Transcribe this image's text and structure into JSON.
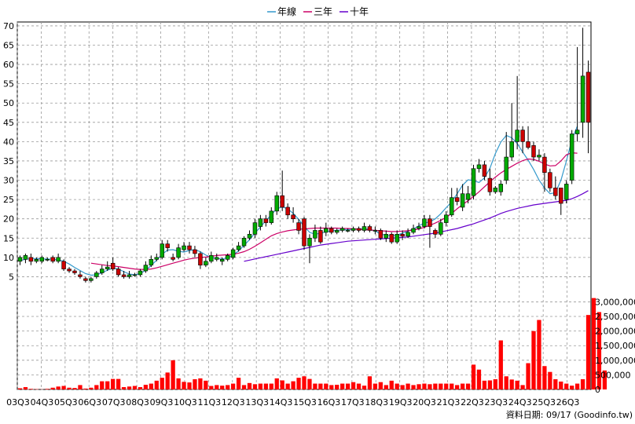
{
  "legend": {
    "year_line": "年線",
    "three_year": "三年",
    "ten_year": "十年"
  },
  "footer": {
    "source": "資料日期: 09/17 (Goodinfo.tw)"
  },
  "colors": {
    "up": "#00aa00",
    "down": "#cc0000",
    "year_line": "#3399cc",
    "three_year": "#cc0066",
    "ten_year": "#6600cc",
    "volume": "#ff0000",
    "grid": "#999999"
  },
  "chart_data": {
    "type": "candlestick",
    "price_axis": {
      "ylim": [
        0,
        71
      ],
      "ticks": [
        5,
        10,
        15,
        20,
        25,
        30,
        35,
        40,
        45,
        50,
        55,
        60,
        65,
        70
      ]
    },
    "volume_axis": {
      "ylim": [
        0,
        3200000
      ],
      "ticks": [
        0,
        500000,
        1000000,
        1500000,
        2000000,
        2500000,
        3000000
      ],
      "tick_labels": [
        "0",
        "500,000",
        "1,000,000",
        "1,500,000",
        "2,000,000",
        "2,500,000",
        "3,000,000"
      ]
    },
    "x_labels": [
      "03Q3",
      "04Q3",
      "05Q3",
      "06Q3",
      "07Q3",
      "08Q3",
      "09Q3",
      "10Q3",
      "11Q3",
      "12Q3",
      "13Q3",
      "14Q3",
      "15Q3",
      "16Q3",
      "17Q3",
      "18Q3",
      "19Q3",
      "20Q3",
      "21Q3",
      "22Q3",
      "23Q3",
      "24Q3",
      "25Q3",
      "26Q3"
    ],
    "candles": [
      {
        "o": 9,
        "c": 10,
        "h": 10.5,
        "l": 8
      },
      {
        "o": 9.5,
        "c": 10.5,
        "h": 11,
        "l": 8.5
      },
      {
        "o": 10,
        "c": 9,
        "h": 11,
        "l": 8
      },
      {
        "o": 9,
        "c": 9.5,
        "h": 10,
        "l": 8.5
      },
      {
        "o": 9,
        "c": 10,
        "h": 10.5,
        "l": 8.5
      },
      {
        "o": 9.5,
        "c": 9.5,
        "h": 10,
        "l": 9
      },
      {
        "o": 10,
        "c": 9,
        "h": 10.5,
        "l": 8.5
      },
      {
        "o": 9,
        "c": 10,
        "h": 11,
        "l": 8.5
      },
      {
        "o": 9,
        "c": 7,
        "h": 9.5,
        "l": 6.5
      },
      {
        "o": 7,
        "c": 6.5,
        "h": 7.5,
        "l": 6
      },
      {
        "o": 6.5,
        "c": 6,
        "h": 7,
        "l": 5.5
      },
      {
        "o": 5.5,
        "c": 5,
        "h": 6.5,
        "l": 4.5
      },
      {
        "o": 4.5,
        "c": 4,
        "h": 5,
        "l": 3.5
      },
      {
        "o": 4,
        "c": 4.5,
        "h": 5,
        "l": 3.5
      },
      {
        "o": 5,
        "c": 6,
        "h": 6.5,
        "l": 4.5
      },
      {
        "o": 6,
        "c": 7,
        "h": 8,
        "l": 5.5
      },
      {
        "o": 7,
        "c": 7.5,
        "h": 9,
        "l": 6.5
      },
      {
        "o": 8.5,
        "c": 7,
        "h": 10,
        "l": 6.5
      },
      {
        "o": 7,
        "c": 5.5,
        "h": 7.5,
        "l": 5
      },
      {
        "o": 5.5,
        "c": 5,
        "h": 6.5,
        "l": 4.5
      },
      {
        "o": 5,
        "c": 5.5,
        "h": 6.5,
        "l": 4.5
      },
      {
        "o": 5.5,
        "c": 5.5,
        "h": 6,
        "l": 5
      },
      {
        "o": 5.5,
        "c": 6.5,
        "h": 7,
        "l": 5
      },
      {
        "o": 6.5,
        "c": 8,
        "h": 9,
        "l": 6
      },
      {
        "o": 8,
        "c": 9.5,
        "h": 10.5,
        "l": 7.5
      },
      {
        "o": 9.5,
        "c": 10,
        "h": 11,
        "l": 9
      },
      {
        "o": 10,
        "c": 13.5,
        "h": 14.5,
        "l": 9.5
      },
      {
        "o": 13.5,
        "c": 12.5,
        "h": 14.5,
        "l": 11.5
      },
      {
        "o": 10,
        "c": 9.5,
        "h": 11,
        "l": 9
      },
      {
        "o": 10,
        "c": 12.5,
        "h": 13.5,
        "l": 9.5
      },
      {
        "o": 12,
        "c": 13,
        "h": 14,
        "l": 11.5
      },
      {
        "o": 13,
        "c": 12,
        "h": 14,
        "l": 11
      },
      {
        "o": 12,
        "c": 11,
        "h": 13,
        "l": 10
      },
      {
        "o": 11,
        "c": 8,
        "h": 11.5,
        "l": 7
      },
      {
        "o": 8,
        "c": 9,
        "h": 10,
        "l": 7.5
      },
      {
        "o": 9,
        "c": 10.5,
        "h": 11.5,
        "l": 8.5
      },
      {
        "o": 9.5,
        "c": 10,
        "h": 11,
        "l": 9
      },
      {
        "o": 9,
        "c": 9.5,
        "h": 10,
        "l": 8
      },
      {
        "o": 9.5,
        "c": 10.5,
        "h": 11,
        "l": 9
      },
      {
        "o": 10,
        "c": 12,
        "h": 12.5,
        "l": 9.5
      },
      {
        "o": 12,
        "c": 13,
        "h": 14,
        "l": 11.5
      },
      {
        "o": 13,
        "c": 15,
        "h": 15.5,
        "l": 12.5
      },
      {
        "o": 15,
        "c": 16,
        "h": 17,
        "l": 14.5
      },
      {
        "o": 16,
        "c": 19,
        "h": 20,
        "l": 15
      },
      {
        "o": 18,
        "c": 20,
        "h": 21,
        "l": 17
      },
      {
        "o": 20,
        "c": 19,
        "h": 21,
        "l": 18
      },
      {
        "o": 19,
        "c": 22,
        "h": 23,
        "l": 18.5
      },
      {
        "o": 22,
        "c": 26,
        "h": 27,
        "l": 21
      },
      {
        "o": 26,
        "c": 23,
        "h": 32.5,
        "l": 22
      },
      {
        "o": 23,
        "c": 21,
        "h": 24,
        "l": 20
      },
      {
        "o": 21,
        "c": 20,
        "h": 23,
        "l": 19
      },
      {
        "o": 19,
        "c": 17,
        "h": 20,
        "l": 16
      },
      {
        "o": 20,
        "c": 13,
        "h": 20.5,
        "l": 12
      },
      {
        "o": 13,
        "c": 15,
        "h": 16,
        "l": 8.5
      },
      {
        "o": 15,
        "c": 17,
        "h": 18.5,
        "l": 14
      },
      {
        "o": 17,
        "c": 14,
        "h": 18,
        "l": 13.5
      },
      {
        "o": 16.5,
        "c": 17.5,
        "h": 19,
        "l": 15.5
      },
      {
        "o": 17.5,
        "c": 16.5,
        "h": 18,
        "l": 16
      },
      {
        "o": 16.5,
        "c": 17,
        "h": 17.5,
        "l": 16
      },
      {
        "o": 17,
        "c": 17.5,
        "h": 18,
        "l": 16.5
      },
      {
        "o": 17,
        "c": 17,
        "h": 17.5,
        "l": 16.5
      },
      {
        "o": 17,
        "c": 17.5,
        "h": 18,
        "l": 16.5
      },
      {
        "o": 17.5,
        "c": 17,
        "h": 18,
        "l": 16.5
      },
      {
        "o": 17,
        "c": 18,
        "h": 19,
        "l": 16.5
      },
      {
        "o": 18,
        "c": 17,
        "h": 18.5,
        "l": 16.5
      },
      {
        "o": 17,
        "c": 17,
        "h": 18,
        "l": 16
      },
      {
        "o": 17,
        "c": 15,
        "h": 17.5,
        "l": 14.5
      },
      {
        "o": 15,
        "c": 16,
        "h": 17,
        "l": 14
      },
      {
        "o": 16,
        "c": 14,
        "h": 16.5,
        "l": 13.5
      },
      {
        "o": 14,
        "c": 16,
        "h": 17,
        "l": 13.5
      },
      {
        "o": 16,
        "c": 15.5,
        "h": 17,
        "l": 14.5
      },
      {
        "o": 15.5,
        "c": 16.5,
        "h": 17.5,
        "l": 15
      },
      {
        "o": 16.5,
        "c": 17.5,
        "h": 18.5,
        "l": 16
      },
      {
        "o": 17.5,
        "c": 18,
        "h": 19,
        "l": 17
      },
      {
        "o": 18,
        "c": 20,
        "h": 21,
        "l": 17.5
      },
      {
        "o": 20,
        "c": 18,
        "h": 21,
        "l": 12.5
      },
      {
        "o": 17,
        "c": 16,
        "h": 17.5,
        "l": 15
      },
      {
        "o": 16,
        "c": 19,
        "h": 20,
        "l": 15.5
      },
      {
        "o": 19,
        "c": 21,
        "h": 22,
        "l": 18
      },
      {
        "o": 21,
        "c": 25.5,
        "h": 28,
        "l": 20.5
      },
      {
        "o": 25.5,
        "c": 24.5,
        "h": 28,
        "l": 23.5
      },
      {
        "o": 23,
        "c": 26.5,
        "h": 29,
        "l": 22
      },
      {
        "o": 25,
        "c": 26.5,
        "h": 28.5,
        "l": 24
      },
      {
        "o": 26,
        "c": 33,
        "h": 34,
        "l": 25
      },
      {
        "o": 33,
        "c": 34,
        "h": 35.5,
        "l": 32
      },
      {
        "o": 34,
        "c": 31,
        "h": 35,
        "l": 30
      },
      {
        "o": 30.5,
        "c": 27,
        "h": 33,
        "l": 26
      },
      {
        "o": 27,
        "c": 28,
        "h": 28.5,
        "l": 26.5
      },
      {
        "o": 27,
        "c": 29,
        "h": 30,
        "l": 26
      },
      {
        "o": 30,
        "c": 36,
        "h": 42.5,
        "l": 29
      },
      {
        "o": 36,
        "c": 40,
        "h": 50,
        "l": 35
      },
      {
        "o": 40,
        "c": 43,
        "h": 57,
        "l": 38
      },
      {
        "o": 43,
        "c": 40,
        "h": 44,
        "l": 37
      },
      {
        "o": 40,
        "c": 38.5,
        "h": 44,
        "l": 38
      },
      {
        "o": 39,
        "c": 36,
        "h": 40,
        "l": 35
      },
      {
        "o": 36,
        "c": 36.5,
        "h": 38,
        "l": 35
      },
      {
        "o": 36,
        "c": 32,
        "h": 37,
        "l": 27
      },
      {
        "o": 32,
        "c": 28,
        "h": 33,
        "l": 27
      },
      {
        "o": 28,
        "c": 26,
        "h": 31,
        "l": 25
      },
      {
        "o": 28,
        "c": 24,
        "h": 28,
        "l": 21
      },
      {
        "o": 25,
        "c": 29,
        "h": 30,
        "l": 24
      },
      {
        "o": 30,
        "c": 42,
        "h": 43,
        "l": 29
      },
      {
        "o": 42,
        "c": 43,
        "h": 64.5,
        "l": 40
      },
      {
        "o": 45,
        "c": 57,
        "h": 69.5,
        "l": 41
      },
      {
        "o": 58,
        "c": 45,
        "h": 61,
        "l": 37
      }
    ],
    "series": [
      {
        "name": "年線",
        "values": [
          9.2,
          9.5,
          9.7,
          9.7,
          9.6,
          9.6,
          9.5,
          9.4,
          9.0,
          8.3,
          7.4,
          6.6,
          5.8,
          5.4,
          5.5,
          6.0,
          6.7,
          7.2,
          7.0,
          6.3,
          5.7,
          5.5,
          5.8,
          6.7,
          7.9,
          9.3,
          10.8,
          11.9,
          12.0,
          11.6,
          11.4,
          11.8,
          12.0,
          11.5,
          10.6,
          10.0,
          9.7,
          9.6,
          9.9,
          10.6,
          11.7,
          13.1,
          14.6,
          16.3,
          17.9,
          19.5,
          21.1,
          22.6,
          23.1,
          22.6,
          21.4,
          19.9,
          18.0,
          16.5,
          16.0,
          16.3,
          16.6,
          16.9,
          17.0,
          17.1,
          17.2,
          17.3,
          17.4,
          17.4,
          17.3,
          16.8,
          16.1,
          15.7,
          15.6,
          15.8,
          16.3,
          16.8,
          17.4,
          18.2,
          18.9,
          19.2,
          20.0,
          21.3,
          22.9,
          24.4,
          26.5,
          28.7,
          30.1,
          29.9,
          29.4,
          30.6,
          33.1,
          36.9,
          39.9,
          41.6,
          41.0,
          39.5,
          37.3,
          35.2,
          32.8,
          30.0,
          28.0,
          26.5,
          26.8,
          30.0,
          35.0,
          40.5,
          44.0
        ]
      },
      {
        "name": "三年",
        "start": 13,
        "values": [
          8.5,
          8.3,
          8.1,
          7.9,
          7.8,
          7.6,
          7.4,
          7.2,
          7.0,
          6.9,
          6.9,
          7.0,
          7.3,
          7.7,
          8.1,
          8.5,
          8.9,
          9.3,
          9.6,
          9.8,
          10.0,
          10.1,
          10.3,
          10.5,
          10.6,
          10.7,
          10.8,
          11.1,
          11.5,
          12.1,
          12.9,
          13.8,
          14.7,
          15.6,
          16.2,
          16.6,
          16.9,
          17.1,
          17.3,
          17.4,
          17.5,
          17.6,
          17.6,
          17.6,
          17.6,
          17.6,
          17.5,
          17.5,
          17.4,
          17.3,
          17.2,
          17.1,
          17.0,
          16.9,
          16.8,
          16.7,
          16.7,
          16.8,
          16.9,
          17.1,
          17.4,
          17.8,
          18.3,
          18.9,
          19.6,
          20.4,
          21.4,
          22.6,
          23.7,
          24.7,
          25.8,
          27.0,
          28.3,
          29.6,
          30.8,
          31.9,
          32.8,
          33.6,
          34.4,
          35.1,
          35.5,
          35.4,
          34.9,
          34.2,
          33.7,
          33.8,
          35.0,
          36.6,
          37.1,
          37.0
        ]
      },
      {
        "name": "十年",
        "start": 41,
        "values": [
          9.0,
          9.3,
          9.6,
          9.9,
          10.2,
          10.5,
          10.8,
          11.1,
          11.4,
          11.7,
          12.0,
          12.3,
          12.6,
          12.9,
          13.2,
          13.4,
          13.6,
          13.8,
          14.0,
          14.2,
          14.3,
          14.4,
          14.5,
          14.6,
          14.7,
          14.8,
          14.9,
          15.0,
          15.1,
          15.2,
          15.3,
          15.5,
          15.7,
          15.9,
          16.1,
          16.3,
          16.6,
          16.9,
          17.2,
          17.5,
          17.9,
          18.3,
          18.7,
          19.2,
          19.7,
          20.2,
          20.8,
          21.4,
          21.9,
          22.3,
          22.7,
          23.0,
          23.3,
          23.6,
          23.8,
          24.0,
          24.2,
          24.4,
          24.6,
          24.8,
          25.2,
          25.8,
          26.5,
          27.3
        ]
      }
    ],
    "volume": [
      40000,
      80000,
      20000,
      10000,
      5000,
      20000,
      60000,
      100000,
      120000,
      60000,
      50000,
      150000,
      30000,
      60000,
      150000,
      280000,
      280000,
      360000,
      360000,
      80000,
      100000,
      120000,
      80000,
      160000,
      200000,
      300000,
      400000,
      580000,
      1000000,
      380000,
      260000,
      240000,
      350000,
      380000,
      300000,
      120000,
      150000,
      130000,
      150000,
      200000,
      400000,
      150000,
      220000,
      180000,
      200000,
      200000,
      200000,
      380000,
      310000,
      200000,
      280000,
      400000,
      450000,
      360000,
      200000,
      200000,
      200000,
      150000,
      160000,
      200000,
      200000,
      250000,
      200000,
      130000,
      450000,
      200000,
      250000,
      150000,
      300000,
      200000,
      150000,
      200000,
      150000,
      180000,
      200000,
      180000,
      200000,
      200000,
      200000,
      200000,
      150000,
      200000,
      200000,
      850000,
      680000,
      300000,
      310000,
      350000,
      1680000,
      450000,
      340000,
      300000,
      150000,
      900000,
      2000000,
      2380000,
      800000,
      600000,
      350000,
      270000,
      200000,
      130000,
      200000,
      350000,
      2550000,
      3130000,
      2650000,
      650000
    ]
  }
}
